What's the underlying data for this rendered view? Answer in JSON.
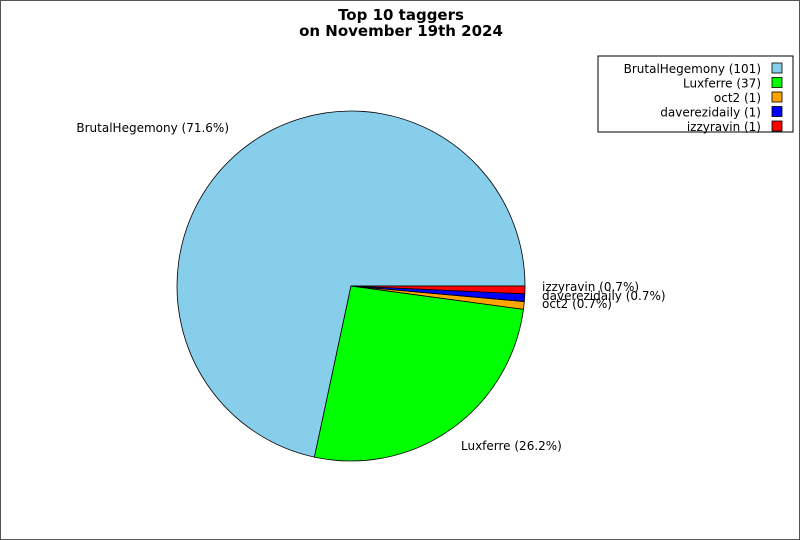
{
  "chart_data": {
    "type": "pie",
    "title_lines": [
      "Top 10 taggers",
      "on November 19th 2024"
    ],
    "slices": [
      {
        "name": "BrutalHegemony",
        "value": 101,
        "percent_label": "BrutalHegemony (71.6%)",
        "legend_label": "BrutalHegemony (101)",
        "color": "#87ceeb"
      },
      {
        "name": "Luxferre",
        "value": 37,
        "percent_label": "Luxferre (26.2%)",
        "legend_label": "Luxferre (37)",
        "color": "#00ff00"
      },
      {
        "name": "oct2",
        "value": 1,
        "percent_label": "oct2 (0.7%)",
        "legend_label": "oct2 (1)",
        "color": "#ffa500"
      },
      {
        "name": "daverezidaily",
        "value": 1,
        "percent_label": "daverezidaily (0.7%)",
        "legend_label": "daverezidaily (1)",
        "color": "#0000ff"
      },
      {
        "name": "izzyravin",
        "value": 1,
        "percent_label": "izzyravin (0.7%)",
        "legend_label": "izzyravin (1)",
        "color": "#ff0000"
      }
    ],
    "legend_position": "top-right"
  }
}
